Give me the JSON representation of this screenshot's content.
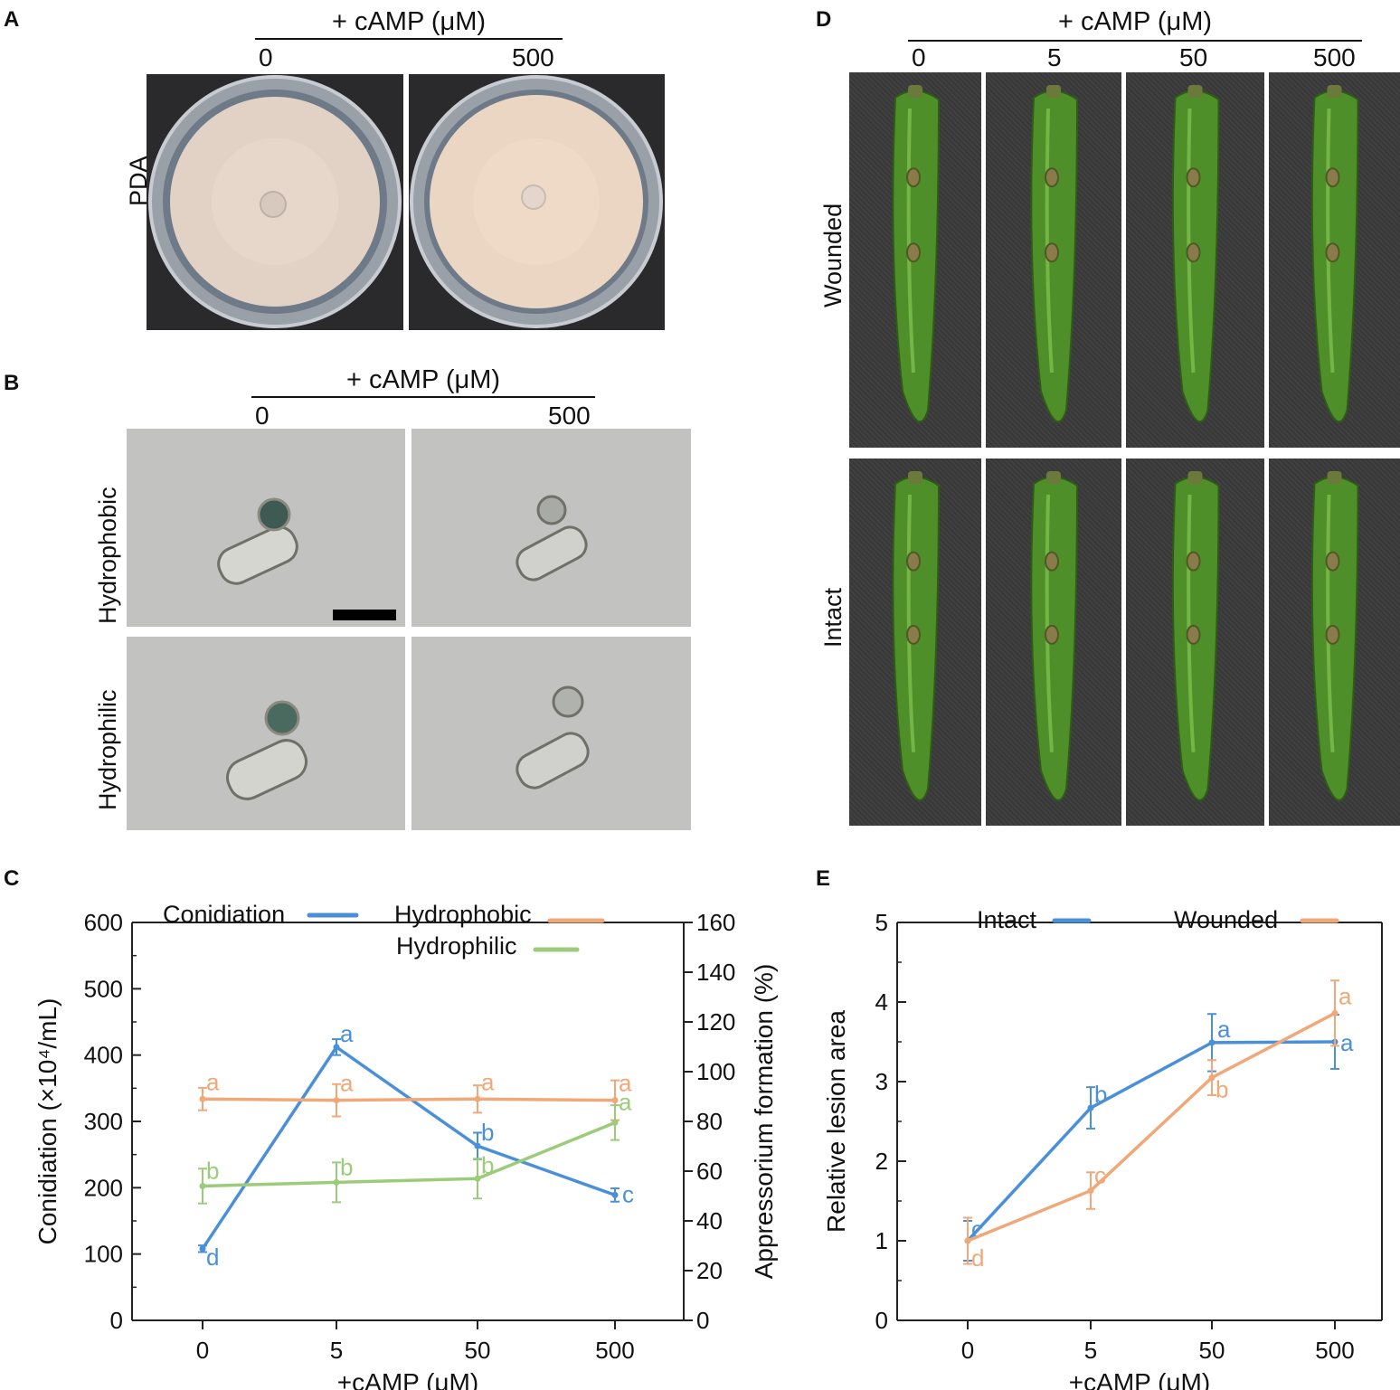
{
  "panels": {
    "A": {
      "label": "A",
      "header": "+ cAMP (μM)",
      "columns": [
        "0",
        "500"
      ],
      "row_label": "PDA"
    },
    "B": {
      "label": "B",
      "header": "+ cAMP (μM)",
      "columns": [
        "0",
        "500"
      ],
      "row_labels": [
        "Hydrophobic",
        "Hydrophilic"
      ]
    },
    "C": {
      "label": "C"
    },
    "D": {
      "label": "D",
      "header": "+ cAMP (μM)",
      "columns": [
        "0",
        "5",
        "50",
        "500"
      ],
      "row_labels": [
        "Wounded",
        "Intact"
      ]
    },
    "E": {
      "label": "E"
    }
  },
  "colors": {
    "blue": "#4a90d9",
    "orange": "#f0a878",
    "green": "#9ccc7a",
    "axis": "#222222",
    "dish_agar": "#e8d8cc",
    "pepper": "#4f8f2a"
  },
  "chart_data": [
    {
      "panel": "C",
      "type": "line",
      "categories": [
        "0",
        "5",
        "50",
        "500"
      ],
      "xlabel": "+cAMP (μM)",
      "ylabel": "Conidiation (×10⁴/mL)",
      "ylabel_right": "Appressorium formation (%)",
      "ylim": [
        0,
        600
      ],
      "yticks": [
        "0",
        "100",
        "200",
        "300",
        "400",
        "500",
        "600"
      ],
      "ylim_right": [
        0,
        160
      ],
      "yticks_right": [
        "0",
        "20",
        "40",
        "60",
        "80",
        "100",
        "120",
        "140",
        "160"
      ],
      "legend_position": "top",
      "series": [
        {
          "name": "Conidiation",
          "axis": "left",
          "color": "#4a90d9",
          "values": [
            108,
            412,
            263,
            189
          ],
          "errors": [
            5,
            12,
            20,
            10
          ],
          "letters": [
            "d",
            "a",
            "b",
            "c"
          ]
        },
        {
          "name": "Hydrophobic",
          "axis": "right",
          "color": "#f0a878",
          "values": [
            89,
            88.5,
            89,
            88.5
          ],
          "errors": [
            4.5,
            6.5,
            5.5,
            8
          ],
          "letters": [
            "a",
            "a",
            "a",
            "a"
          ]
        },
        {
          "name": "Hydrophilic",
          "axis": "right",
          "color": "#9ccc7a",
          "values": [
            54,
            55.5,
            57,
            79.5
          ],
          "errors": [
            7,
            8,
            8,
            7
          ],
          "letters": [
            "b",
            "b",
            "b",
            "a"
          ]
        }
      ]
    },
    {
      "panel": "E",
      "type": "line",
      "categories": [
        "0",
        "5",
        "50",
        "500"
      ],
      "xlabel": "+cAMP (μM)",
      "ylabel": "Relative lesion area",
      "ylim": [
        0,
        5
      ],
      "yticks": [
        "0",
        "1",
        "2",
        "3",
        "4",
        "5"
      ],
      "legend_position": "top",
      "series": [
        {
          "name": "Intact",
          "color": "#4a90d9",
          "values": [
            1.0,
            2.67,
            3.49,
            3.5
          ],
          "errors": [
            0.25,
            0.26,
            0.36,
            0.34
          ],
          "letters": [
            "c",
            "b",
            "a",
            "a"
          ]
        },
        {
          "name": "Wounded",
          "color": "#f0a878",
          "values": [
            1.0,
            1.63,
            3.05,
            3.86
          ],
          "errors": [
            0.29,
            0.23,
            0.22,
            0.41
          ],
          "letters": [
            "d",
            "c",
            "b",
            "a"
          ]
        }
      ]
    }
  ]
}
